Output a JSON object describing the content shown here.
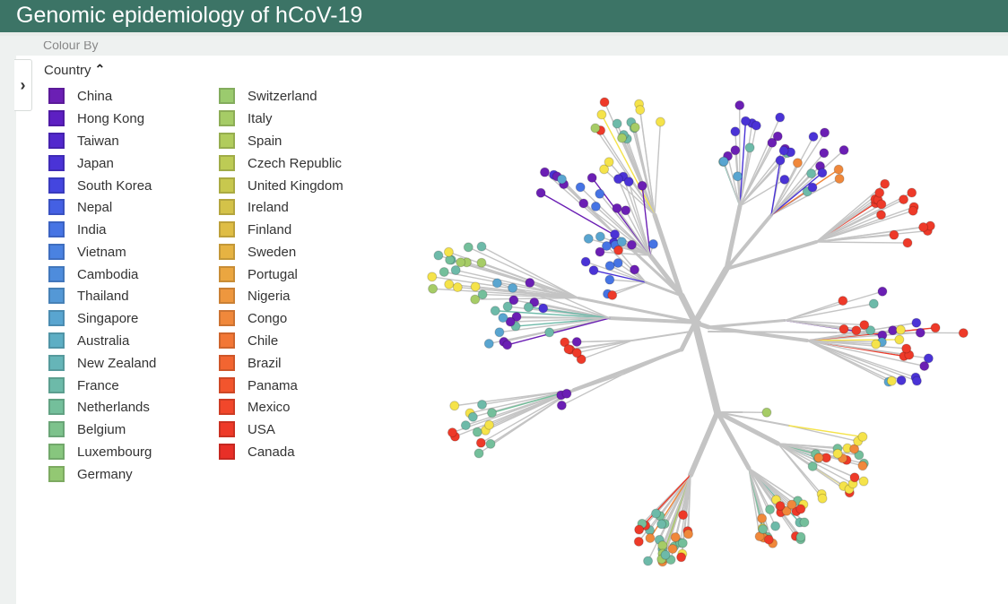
{
  "header": {
    "title": "Genomic epidemiology of hCoV-19"
  },
  "sidebar": {
    "collapsed_heading": "Colour By"
  },
  "legend": {
    "title": "Country",
    "columns": [
      [
        {
          "label": "China",
          "color": "#6b1fb4"
        },
        {
          "label": "Hong Kong",
          "color": "#5d1fc2"
        },
        {
          "label": "Taiwan",
          "color": "#5228cd"
        },
        {
          "label": "Japan",
          "color": "#4a33d6"
        },
        {
          "label": "South Korea",
          "color": "#4446df"
        },
        {
          "label": "Nepal",
          "color": "#4460e3"
        },
        {
          "label": "India",
          "color": "#4674e4"
        },
        {
          "label": "Vietnam",
          "color": "#4a82e1"
        },
        {
          "label": "Cambodia",
          "color": "#4e8cdc"
        },
        {
          "label": "Thailand",
          "color": "#5498d6"
        },
        {
          "label": "Singapore",
          "color": "#59a5d0"
        },
        {
          "label": "Australia",
          "color": "#5eaec4"
        },
        {
          "label": "New Zealand",
          "color": "#66b5b8"
        },
        {
          "label": "France",
          "color": "#6dbaa9"
        },
        {
          "label": "Netherlands",
          "color": "#74bf9b"
        },
        {
          "label": "Belgium",
          "color": "#7dc28c"
        },
        {
          "label": "Luxembourg",
          "color": "#87c67e"
        },
        {
          "label": "Germany",
          "color": "#93c873"
        }
      ],
      [
        {
          "label": "Switzerland",
          "color": "#9bcb6e"
        },
        {
          "label": "Italy",
          "color": "#a6cc66"
        },
        {
          "label": "Spain",
          "color": "#b1cc5d"
        },
        {
          "label": "Czech Republic",
          "color": "#bdcb55"
        },
        {
          "label": "United Kingdom",
          "color": "#c8c84e"
        },
        {
          "label": "Ireland",
          "color": "#d4c249"
        },
        {
          "label": "Finland",
          "color": "#dfbd45"
        },
        {
          "label": "Sweden",
          "color": "#e6b342"
        },
        {
          "label": "Portugal",
          "color": "#eba640"
        },
        {
          "label": "Nigeria",
          "color": "#ee973e"
        },
        {
          "label": "Congo",
          "color": "#f0883b"
        },
        {
          "label": "Chile",
          "color": "#f27736"
        },
        {
          "label": "Brazil",
          "color": "#f26531"
        },
        {
          "label": "Panama",
          "color": "#f2552d"
        },
        {
          "label": "Mexico",
          "color": "#f1472b"
        },
        {
          "label": "USA",
          "color": "#ee3a29"
        },
        {
          "label": "Canada",
          "color": "#e82f27"
        }
      ]
    ]
  },
  "tree": {
    "colors": {
      "purple": "#6b1fb4",
      "violet": "#4a33d6",
      "blue": "#4674e4",
      "sky": "#59a5d0",
      "teal": "#6dbaa9",
      "mint": "#74bf9b",
      "lime": "#a6cc66",
      "yellow": "#f5e34a",
      "orange": "#f0883b",
      "red": "#ee3a29",
      "branch": "#c4c4c4"
    }
  }
}
